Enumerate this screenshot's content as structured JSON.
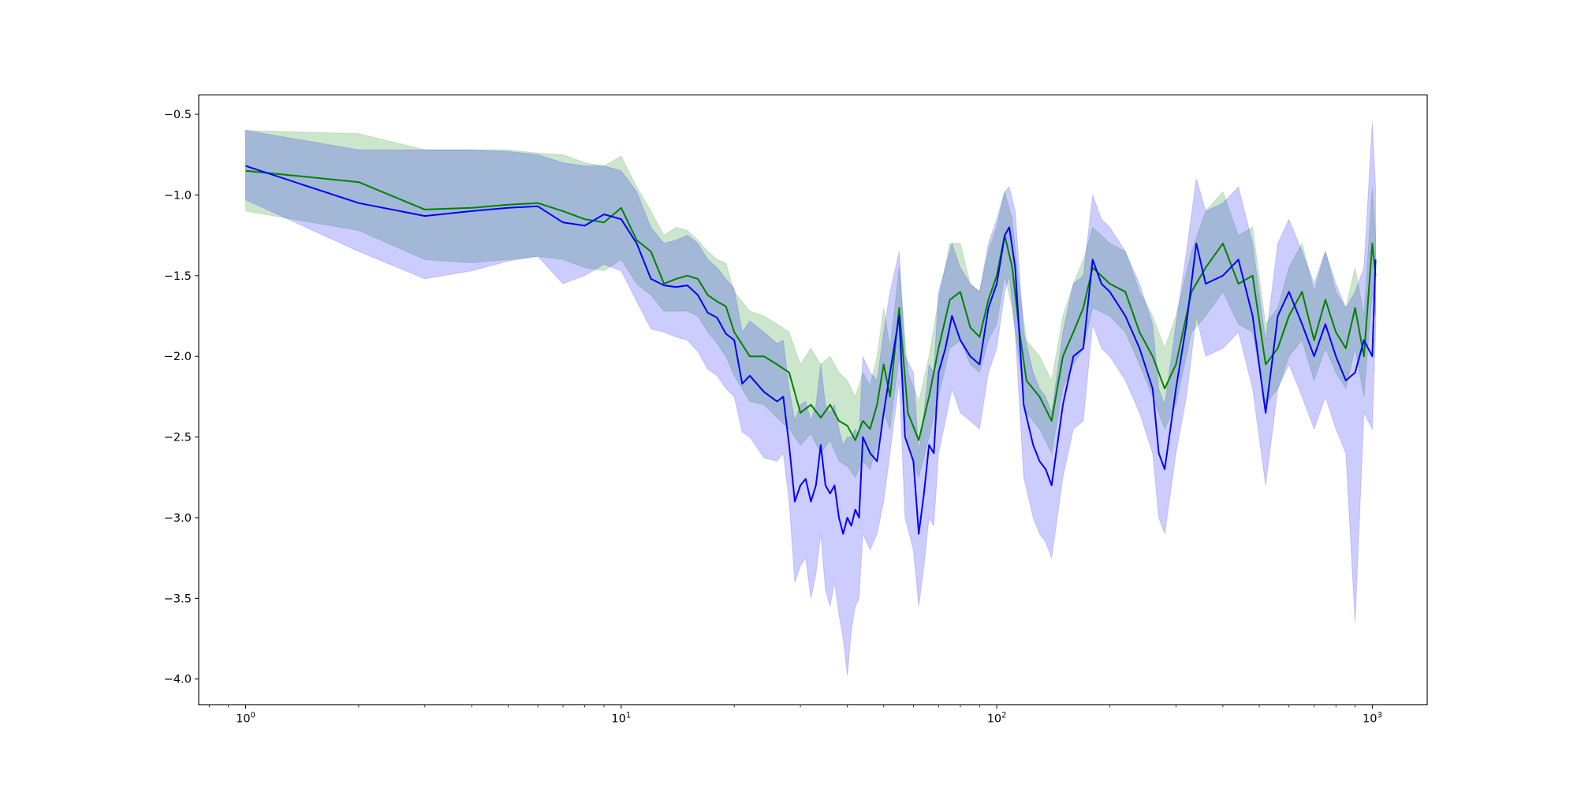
{
  "chart_data": {
    "type": "line",
    "title": "",
    "xlabel": "",
    "ylabel": "",
    "xscale": "log",
    "xlim": [
      0.75,
      1400
    ],
    "ylim": [
      -4.16,
      -0.38
    ],
    "grid": false,
    "legend": "none",
    "x_ticks": [
      {
        "value": 1,
        "base": "10",
        "exp": "0"
      },
      {
        "value": 10,
        "base": "10",
        "exp": "1"
      },
      {
        "value": 100,
        "base": "10",
        "exp": "2"
      },
      {
        "value": 1000,
        "base": "10",
        "exp": "3"
      }
    ],
    "y_ticks": [
      {
        "value": -0.5,
        "label": "−0.5"
      },
      {
        "value": -1.0,
        "label": "−1.0"
      },
      {
        "value": -1.5,
        "label": "−1.5"
      },
      {
        "value": -2.0,
        "label": "−2.0"
      },
      {
        "value": -2.5,
        "label": "−2.5"
      },
      {
        "value": -3.0,
        "label": "−3.0"
      },
      {
        "value": -3.5,
        "label": "−3.5"
      },
      {
        "value": -4.0,
        "label": "−4.0"
      }
    ],
    "series": [
      {
        "color": "#008000",
        "band_color": "#008000",
        "band_opacity": 0.2,
        "x": [
          1,
          2,
          3,
          4,
          5,
          6,
          7,
          8,
          9,
          10,
          11,
          12,
          13,
          14,
          15,
          16,
          17,
          18,
          19,
          20,
          22,
          24,
          26,
          28,
          30,
          32,
          34,
          36,
          38,
          40,
          42,
          44,
          46,
          48,
          50,
          52,
          55,
          58,
          62,
          66,
          70,
          75,
          80,
          85,
          90,
          95,
          100,
          105,
          110,
          115,
          120,
          130,
          140,
          150,
          160,
          170,
          180,
          200,
          220,
          240,
          260,
          280,
          300,
          330,
          360,
          400,
          440,
          480,
          520,
          560,
          600,
          650,
          700,
          750,
          800,
          850,
          900,
          950,
          1000,
          1020
        ],
        "y": [
          -0.85,
          -0.92,
          -1.09,
          -1.08,
          -1.06,
          -1.05,
          -1.1,
          -1.15,
          -1.17,
          -1.08,
          -1.28,
          -1.35,
          -1.55,
          -1.52,
          -1.5,
          -1.52,
          -1.62,
          -1.66,
          -1.69,
          -1.85,
          -2.0,
          -2.0,
          -2.05,
          -2.1,
          -2.35,
          -2.3,
          -2.38,
          -2.3,
          -2.4,
          -2.43,
          -2.52,
          -2.4,
          -2.45,
          -2.3,
          -2.05,
          -2.25,
          -1.7,
          -2.35,
          -2.52,
          -2.25,
          -1.95,
          -1.65,
          -1.6,
          -1.82,
          -1.88,
          -1.65,
          -1.5,
          -1.25,
          -1.45,
          -1.85,
          -2.15,
          -2.25,
          -2.4,
          -2.0,
          -1.85,
          -1.7,
          -1.45,
          -1.55,
          -1.6,
          -1.85,
          -2.0,
          -2.2,
          -2.05,
          -1.6,
          -1.45,
          -1.3,
          -1.55,
          -1.5,
          -2.05,
          -1.95,
          -1.75,
          -1.6,
          -1.9,
          -1.65,
          -1.85,
          -1.95,
          -1.7,
          -2.0,
          -1.3,
          -1.5
        ],
        "low": [
          -1.1,
          -1.22,
          -1.4,
          -1.42,
          -1.4,
          -1.38,
          -1.4,
          -1.45,
          -1.47,
          -1.4,
          -1.55,
          -1.62,
          -1.72,
          -1.72,
          -1.72,
          -1.75,
          -1.85,
          -1.92,
          -2.0,
          -2.12,
          -2.28,
          -2.3,
          -2.38,
          -2.45,
          -2.55,
          -2.48,
          -2.6,
          -2.52,
          -2.65,
          -2.68,
          -2.75,
          -2.65,
          -2.7,
          -2.55,
          -2.35,
          -2.45,
          -2.0,
          -2.55,
          -2.75,
          -2.5,
          -2.25,
          -1.95,
          -1.9,
          -2.05,
          -2.1,
          -1.9,
          -1.8,
          -1.5,
          -1.7,
          -2.05,
          -2.35,
          -2.45,
          -2.6,
          -2.2,
          -2.05,
          -1.95,
          -1.7,
          -1.75,
          -1.85,
          -2.05,
          -2.25,
          -2.45,
          -2.3,
          -1.85,
          -1.75,
          -1.6,
          -1.8,
          -1.85,
          -2.3,
          -2.2,
          -2.0,
          -1.9,
          -2.15,
          -1.95,
          -2.1,
          -2.2,
          -1.95,
          -2.25,
          -1.6,
          -1.75
        ],
        "high": [
          -0.6,
          -0.62,
          -0.72,
          -0.72,
          -0.72,
          -0.74,
          -0.75,
          -0.8,
          -0.82,
          -0.76,
          -0.95,
          -1.1,
          -1.25,
          -1.2,
          -1.22,
          -1.28,
          -1.35,
          -1.4,
          -1.42,
          -1.6,
          -1.72,
          -1.75,
          -1.8,
          -1.85,
          -2.05,
          -1.95,
          -2.05,
          -2.0,
          -2.1,
          -2.15,
          -2.25,
          -2.1,
          -2.18,
          -2.0,
          -1.7,
          -1.95,
          -1.45,
          -2.1,
          -2.28,
          -2.0,
          -1.65,
          -1.3,
          -1.3,
          -1.55,
          -1.6,
          -1.35,
          -1.2,
          -0.98,
          -1.15,
          -1.6,
          -1.9,
          -2.0,
          -2.15,
          -1.75,
          -1.55,
          -1.4,
          -1.2,
          -1.3,
          -1.35,
          -1.6,
          -1.75,
          -1.95,
          -1.75,
          -1.35,
          -1.1,
          -0.98,
          -1.25,
          -1.2,
          -1.8,
          -1.7,
          -1.45,
          -1.3,
          -1.6,
          -1.35,
          -1.6,
          -1.7,
          -1.45,
          -1.75,
          -0.95,
          -1.25
        ]
      },
      {
        "color": "#0000ff",
        "band_color": "#0000ff",
        "band_opacity": 0.2,
        "x": [
          1,
          2,
          3,
          4,
          5,
          6,
          7,
          8,
          9,
          10,
          11,
          12,
          13,
          14,
          15,
          16,
          17,
          18,
          19,
          20,
          21,
          22,
          24,
          26,
          27,
          28,
          29,
          30,
          31,
          32,
          33,
          34,
          35,
          36,
          37,
          38,
          39,
          40,
          41,
          42,
          43,
          44,
          46,
          48,
          50,
          52,
          55,
          57,
          60,
          62,
          64,
          66,
          68,
          70,
          73,
          76,
          80,
          85,
          90,
          95,
          100,
          105,
          108,
          112,
          118,
          125,
          130,
          135,
          140,
          150,
          160,
          170,
          180,
          190,
          200,
          220,
          240,
          260,
          270,
          280,
          290,
          300,
          320,
          340,
          360,
          400,
          440,
          480,
          520,
          540,
          560,
          600,
          650,
          700,
          750,
          800,
          850,
          900,
          950,
          1000,
          1020
        ],
        "y": [
          -0.82,
          -1.05,
          -1.13,
          -1.1,
          -1.08,
          -1.07,
          -1.17,
          -1.19,
          -1.12,
          -1.15,
          -1.3,
          -1.52,
          -1.56,
          -1.57,
          -1.56,
          -1.62,
          -1.73,
          -1.76,
          -1.86,
          -1.9,
          -2.17,
          -2.12,
          -2.22,
          -2.28,
          -2.25,
          -2.55,
          -2.9,
          -2.8,
          -2.76,
          -2.9,
          -2.8,
          -2.55,
          -2.8,
          -2.85,
          -2.8,
          -3.0,
          -3.1,
          -3.0,
          -3.05,
          -2.95,
          -3.0,
          -2.5,
          -2.6,
          -2.65,
          -2.35,
          -2.1,
          -1.75,
          -2.5,
          -2.65,
          -3.1,
          -2.85,
          -2.55,
          -2.6,
          -2.1,
          -1.95,
          -1.75,
          -1.9,
          -2.0,
          -2.05,
          -1.7,
          -1.55,
          -1.25,
          -1.2,
          -1.45,
          -2.3,
          -2.55,
          -2.65,
          -2.7,
          -2.8,
          -2.3,
          -2.0,
          -1.95,
          -1.4,
          -1.55,
          -1.6,
          -1.75,
          -1.95,
          -2.2,
          -2.6,
          -2.7,
          -2.45,
          -2.2,
          -1.8,
          -1.3,
          -1.55,
          -1.5,
          -1.4,
          -1.75,
          -2.35,
          -2.05,
          -1.75,
          -1.6,
          -1.8,
          -2.0,
          -1.8,
          -2.0,
          -2.15,
          -2.1,
          -1.9,
          -2.0,
          -1.4
        ],
        "low": [
          -1.03,
          -1.35,
          -1.52,
          -1.47,
          -1.41,
          -1.38,
          -1.55,
          -1.5,
          -1.43,
          -1.47,
          -1.66,
          -1.83,
          -1.85,
          -1.88,
          -1.9,
          -1.97,
          -2.08,
          -2.12,
          -2.2,
          -2.25,
          -2.47,
          -2.5,
          -2.63,
          -2.65,
          -2.6,
          -2.9,
          -3.4,
          -3.3,
          -3.25,
          -3.5,
          -3.35,
          -3.1,
          -3.45,
          -3.55,
          -3.4,
          -3.6,
          -3.75,
          -3.98,
          -3.7,
          -3.55,
          -3.5,
          -3.1,
          -3.2,
          -3.1,
          -2.9,
          -2.6,
          -2.15,
          -3.0,
          -3.2,
          -3.55,
          -3.3,
          -3.0,
          -3.05,
          -2.6,
          -2.4,
          -2.2,
          -2.35,
          -2.4,
          -2.45,
          -2.1,
          -1.95,
          -1.6,
          -1.5,
          -1.85,
          -2.75,
          -3.0,
          -3.1,
          -3.15,
          -3.25,
          -2.75,
          -2.45,
          -2.4,
          -1.8,
          -1.95,
          -2.0,
          -2.15,
          -2.35,
          -2.6,
          -3.0,
          -3.1,
          -2.85,
          -2.6,
          -2.25,
          -1.75,
          -2.0,
          -1.95,
          -1.85,
          -2.2,
          -2.8,
          -2.5,
          -2.2,
          -2.05,
          -2.25,
          -2.45,
          -2.25,
          -2.45,
          -2.6,
          -3.65,
          -2.35,
          -2.45,
          -1.85
        ],
        "high": [
          -0.6,
          -0.72,
          -0.72,
          -0.72,
          -0.73,
          -0.75,
          -0.8,
          -0.82,
          -0.82,
          -0.85,
          -0.98,
          -1.2,
          -1.3,
          -1.28,
          -1.25,
          -1.3,
          -1.4,
          -1.45,
          -1.52,
          -1.58,
          -1.85,
          -1.78,
          -1.85,
          -1.92,
          -1.9,
          -2.2,
          -2.4,
          -2.3,
          -2.28,
          -2.4,
          -2.3,
          -2.05,
          -2.3,
          -2.35,
          -2.3,
          -2.45,
          -2.55,
          -2.5,
          -2.5,
          -2.45,
          -2.5,
          -2.0,
          -2.1,
          -2.15,
          -1.85,
          -1.6,
          -1.35,
          -2.0,
          -2.1,
          -2.6,
          -2.35,
          -2.05,
          -2.1,
          -1.6,
          -1.45,
          -1.3,
          -1.45,
          -1.55,
          -1.6,
          -1.3,
          -1.15,
          -0.98,
          -0.95,
          -1.1,
          -1.85,
          -2.1,
          -2.2,
          -2.25,
          -2.35,
          -1.85,
          -1.55,
          -1.5,
          -1.0,
          -1.15,
          -1.2,
          -1.35,
          -1.55,
          -1.8,
          -2.2,
          -2.3,
          -2.05,
          -1.8,
          -1.35,
          -0.9,
          -1.1,
          -1.05,
          -0.95,
          -1.3,
          -1.9,
          -1.6,
          -1.3,
          -1.15,
          -1.35,
          -1.55,
          -1.35,
          -1.55,
          -1.7,
          -1.6,
          -1.45,
          -0.55,
          -0.95
        ]
      }
    ]
  }
}
